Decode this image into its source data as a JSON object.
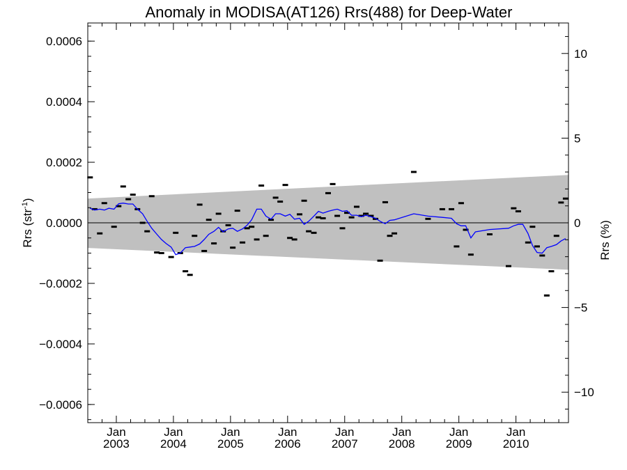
{
  "chart_data": {
    "type": "scatter",
    "title": "Anomaly in MODISA(AT126) Rrs(488) for Deep-Water",
    "ylabel_left": {
      "base": "Rrs (str",
      "sup": "-1",
      "close": ")"
    },
    "ylabel_right": "Rrs (%)",
    "xlim": [
      2002.5,
      2010.92
    ],
    "ylim": [
      -0.00066,
      0.00066
    ],
    "y2lim": [
      -11.8,
      11.8
    ],
    "x_ticks": [
      {
        "x": 2003.0,
        "month": "Jan",
        "year": "2003"
      },
      {
        "x": 2004.0,
        "month": "Jan",
        "year": "2004"
      },
      {
        "x": 2005.0,
        "month": "Jan",
        "year": "2005"
      },
      {
        "x": 2006.0,
        "month": "Jan",
        "year": "2006"
      },
      {
        "x": 2007.0,
        "month": "Jan",
        "year": "2007"
      },
      {
        "x": 2008.0,
        "month": "Jan",
        "year": "2008"
      },
      {
        "x": 2009.0,
        "month": "Jan",
        "year": "2009"
      },
      {
        "x": 2010.0,
        "month": "Jan",
        "year": "2010"
      }
    ],
    "y_ticks": [
      {
        "value": 0.0006,
        "label": "0.0006"
      },
      {
        "value": 0.0004,
        "label": "0.0004"
      },
      {
        "value": 0.0002,
        "label": "0.0002"
      },
      {
        "value": 0.0,
        "label": "0.0000"
      },
      {
        "value": -0.0002,
        "label": "−0.0002"
      },
      {
        "value": -0.0004,
        "label": "−0.0004"
      },
      {
        "value": -0.0006,
        "label": "−0.0006"
      }
    ],
    "y2_ticks": [
      {
        "value": 10,
        "label": "10"
      },
      {
        "value": 5,
        "label": "5"
      },
      {
        "value": 0,
        "label": "0"
      },
      {
        "value": -5,
        "label": "−5"
      },
      {
        "value": -10,
        "label": "−10"
      }
    ],
    "zero_line": 0,
    "envelope": {
      "color": "#c0c0c0",
      "upper": [
        [
          2002.5,
          8e-05
        ],
        [
          2010.92,
          0.000158
        ]
      ],
      "lower": [
        [
          2002.5,
          -8.3e-05
        ],
        [
          2010.92,
          -0.000155
        ]
      ]
    },
    "series": [
      {
        "color": "#000000",
        "marker": "dash",
        "points": [
          [
            2002.54,
            0.00015
          ],
          [
            2002.62,
            4.5e-05
          ],
          [
            2002.71,
            -3.5e-05
          ],
          [
            2002.79,
            6.5e-05
          ],
          [
            2002.96,
            -1.3e-05
          ],
          [
            2003.04,
            5.5e-05
          ],
          [
            2003.12,
            0.00012
          ],
          [
            2003.21,
            7.8e-05
          ],
          [
            2003.29,
            9.3e-05
          ],
          [
            2003.37,
            4.5e-05
          ],
          [
            2003.46,
            0.0
          ],
          [
            2003.54,
            -2.8e-05
          ],
          [
            2003.62,
            8.8e-05
          ],
          [
            2003.71,
            -9.8e-05
          ],
          [
            2003.79,
            -0.0001
          ],
          [
            2003.96,
            -0.000113
          ],
          [
            2004.04,
            -3.3e-05
          ],
          [
            2004.12,
            -0.0001
          ],
          [
            2004.21,
            -0.00016
          ],
          [
            2004.29,
            -0.000172
          ],
          [
            2004.37,
            -4.3e-05
          ],
          [
            2004.46,
            6e-05
          ],
          [
            2004.54,
            -9.3e-05
          ],
          [
            2004.62,
            1e-05
          ],
          [
            2004.71,
            -6.8e-05
          ],
          [
            2004.79,
            3e-05
          ],
          [
            2004.87,
            -2.8e-05
          ],
          [
            2004.96,
            -8e-06
          ],
          [
            2005.04,
            -8.2e-05
          ],
          [
            2005.12,
            4e-05
          ],
          [
            2005.21,
            -6.5e-05
          ],
          [
            2005.29,
            -1.8e-05
          ],
          [
            2005.37,
            -1.3e-05
          ],
          [
            2005.46,
            -5.5e-05
          ],
          [
            2005.54,
            0.000123
          ],
          [
            2005.62,
            -4.3e-05
          ],
          [
            2005.71,
            1e-05
          ],
          [
            2005.79,
            8.3e-05
          ],
          [
            2005.87,
            7e-05
          ],
          [
            2005.96,
            0.000125
          ],
          [
            2006.04,
            -5e-05
          ],
          [
            2006.12,
            -5.5e-05
          ],
          [
            2006.21,
            2.8e-05
          ],
          [
            2006.29,
            7.3e-05
          ],
          [
            2006.37,
            -2.8e-05
          ],
          [
            2006.46,
            -3.3e-05
          ],
          [
            2006.54,
            1.8e-05
          ],
          [
            2006.62,
            1.5e-05
          ],
          [
            2006.71,
            9.8e-05
          ],
          [
            2006.79,
            0.000128
          ],
          [
            2006.87,
            2.3e-05
          ],
          [
            2006.96,
            -1.8e-05
          ],
          [
            2007.04,
            3.3e-05
          ],
          [
            2007.12,
            1.8e-05
          ],
          [
            2007.21,
            5.3e-05
          ],
          [
            2007.29,
            2.3e-05
          ],
          [
            2007.37,
            3e-05
          ],
          [
            2007.46,
            2.3e-05
          ],
          [
            2007.54,
            1.3e-05
          ],
          [
            2007.62,
            -0.000125
          ],
          [
            2007.71,
            6.8e-05
          ],
          [
            2007.79,
            -4.3e-05
          ],
          [
            2007.87,
            -3.5e-05
          ],
          [
            2008.21,
            0.000168
          ],
          [
            2008.46,
            1.3e-05
          ],
          [
            2008.71,
            4.5e-05
          ],
          [
            2008.87,
            4.5e-05
          ],
          [
            2008.96,
            -7.8e-05
          ],
          [
            2009.04,
            6.5e-05
          ],
          [
            2009.12,
            -2.3e-05
          ],
          [
            2009.21,
            -0.000105
          ],
          [
            2009.54,
            -3.8e-05
          ],
          [
            2009.87,
            -0.000143
          ],
          [
            2009.96,
            4.8e-05
          ],
          [
            2010.04,
            3.8e-05
          ],
          [
            2010.21,
            -6.5e-05
          ],
          [
            2010.29,
            -1.3e-05
          ],
          [
            2010.37,
            -7.8e-05
          ],
          [
            2010.46,
            -0.000108
          ],
          [
            2010.54,
            -0.00024
          ],
          [
            2010.62,
            -0.00016
          ],
          [
            2010.71,
            -4.3e-05
          ],
          [
            2010.79,
            6.7e-05
          ],
          [
            2010.87,
            8e-05
          ]
        ]
      },
      {
        "color": "#0000ff",
        "marker": "line",
        "points": [
          [
            2002.54,
            4.8e-05
          ],
          [
            2002.62,
            4.2e-05
          ],
          [
            2002.71,
            4.5e-05
          ],
          [
            2002.79,
            4.2e-05
          ],
          [
            2002.87,
            4.8e-05
          ],
          [
            2002.96,
            4.5e-05
          ],
          [
            2003.04,
            6.3e-05
          ],
          [
            2003.12,
            6.5e-05
          ],
          [
            2003.21,
            6.2e-05
          ],
          [
            2003.29,
            6.2e-05
          ],
          [
            2003.37,
            4.5e-05
          ],
          [
            2003.46,
            3e-05
          ],
          [
            2003.54,
            5e-06
          ],
          [
            2003.62,
            -1.8e-05
          ],
          [
            2003.71,
            -3.8e-05
          ],
          [
            2003.79,
            -5.5e-05
          ],
          [
            2003.87,
            -6.8e-05
          ],
          [
            2003.96,
            -8e-05
          ],
          [
            2004.04,
            -0.000105
          ],
          [
            2004.12,
            -0.0001
          ],
          [
            2004.21,
            -8.2e-05
          ],
          [
            2004.29,
            -8e-05
          ],
          [
            2004.37,
            -7.8e-05
          ],
          [
            2004.46,
            -7e-05
          ],
          [
            2004.54,
            -5.5e-05
          ],
          [
            2004.62,
            -3.8e-05
          ],
          [
            2004.71,
            -2.8e-05
          ],
          [
            2004.79,
            -1.5e-05
          ],
          [
            2004.87,
            -3e-05
          ],
          [
            2004.96,
            -2e-05
          ],
          [
            2005.04,
            -1.8e-05
          ],
          [
            2005.12,
            -2.8e-05
          ],
          [
            2005.21,
            -2e-05
          ],
          [
            2005.29,
            -8e-06
          ],
          [
            2005.37,
            1e-05
          ],
          [
            2005.46,
            4.5e-05
          ],
          [
            2005.54,
            4.5e-05
          ],
          [
            2005.62,
            2.2e-05
          ],
          [
            2005.71,
            1.2e-05
          ],
          [
            2005.79,
            3e-05
          ],
          [
            2005.87,
            3e-05
          ],
          [
            2005.96,
            2.2e-05
          ],
          [
            2006.04,
            2.8e-05
          ],
          [
            2006.12,
            1.2e-05
          ],
          [
            2006.21,
            1.5e-05
          ],
          [
            2006.29,
            -5e-06
          ],
          [
            2006.37,
            5e-06
          ],
          [
            2006.46,
            2.2e-05
          ],
          [
            2006.54,
            3.8e-05
          ],
          [
            2006.62,
            3.2e-05
          ],
          [
            2006.71,
            3.8e-05
          ],
          [
            2006.79,
            4.2e-05
          ],
          [
            2006.87,
            4.5e-05
          ],
          [
            2006.96,
            3.8e-05
          ],
          [
            2007.04,
            4e-05
          ],
          [
            2007.12,
            2.5e-05
          ],
          [
            2007.21,
            2.5e-05
          ],
          [
            2007.29,
            2e-05
          ],
          [
            2007.37,
            2.5e-05
          ],
          [
            2007.46,
            2e-05
          ],
          [
            2007.54,
            1.5e-05
          ],
          [
            2007.62,
            5e-06
          ],
          [
            2007.71,
            -3e-06
          ],
          [
            2007.79,
            8e-06
          ],
          [
            2007.87,
            1e-05
          ],
          [
            2008.21,
            3e-05
          ],
          [
            2008.46,
            2.2e-05
          ],
          [
            2008.71,
            1.8e-05
          ],
          [
            2008.87,
            1.5e-05
          ],
          [
            2008.96,
            -3e-06
          ],
          [
            2009.04,
            -1e-05
          ],
          [
            2009.12,
            -1e-05
          ],
          [
            2009.21,
            -5e-05
          ],
          [
            2009.29,
            -3e-05
          ],
          [
            2009.54,
            -2.2e-05
          ],
          [
            2009.87,
            -1.8e-05
          ],
          [
            2009.96,
            -1e-05
          ],
          [
            2010.04,
            -5e-06
          ],
          [
            2010.12,
            -5e-06
          ],
          [
            2010.21,
            -3.5e-05
          ],
          [
            2010.29,
            -7.5e-05
          ],
          [
            2010.37,
            -9.8e-05
          ],
          [
            2010.46,
            -0.0001
          ],
          [
            2010.54,
            -8.2e-05
          ],
          [
            2010.62,
            -7.8e-05
          ],
          [
            2010.71,
            -7.2e-05
          ],
          [
            2010.79,
            -6e-05
          ],
          [
            2010.87,
            -5.2e-05
          ]
        ]
      }
    ]
  }
}
